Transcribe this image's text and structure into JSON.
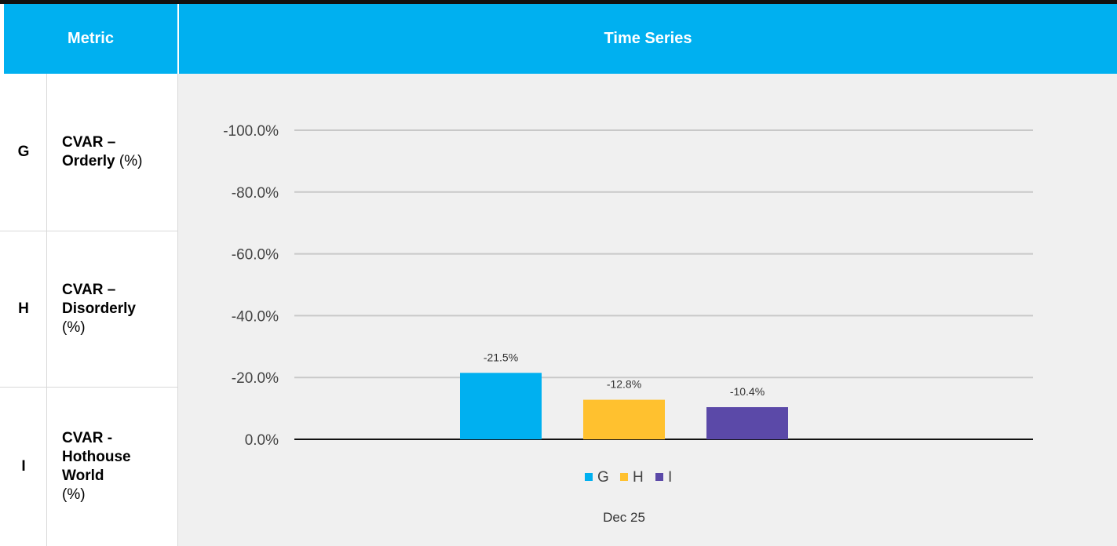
{
  "table": {
    "header_metric": "Metric",
    "header_series": "Time Series",
    "rows": [
      {
        "code": "G",
        "name_bold": "CVAR – Orderly",
        "name_unit": "(%)"
      },
      {
        "code": "H",
        "name_bold": "CVAR – Disorderly",
        "name_unit": "(%)"
      },
      {
        "code": "I",
        "name_bold": "CVAR - Hothouse World",
        "name_unit": "(%)"
      }
    ]
  },
  "chart_data": {
    "type": "bar",
    "categories": [
      "Dec 25"
    ],
    "series": [
      {
        "name": "G",
        "values": [
          -21.5
        ],
        "color": "#00b0f0",
        "label": "-21.5%"
      },
      {
        "name": "H",
        "values": [
          -12.8
        ],
        "color": "#ffc12f",
        "label": "-12.8%"
      },
      {
        "name": "I",
        "values": [
          -10.4
        ],
        "color": "#5b49a8",
        "label": "-10.4%"
      }
    ],
    "y_ticks": [
      "-100.0%",
      "-80.0%",
      "-60.0%",
      "-40.0%",
      "-20.0%",
      "0.0%"
    ],
    "y_tick_values": [
      -100,
      -80,
      -60,
      -40,
      -20,
      0
    ],
    "ylim": [
      0,
      -100
    ],
    "xlabel": "",
    "ylabel": "",
    "grid": true,
    "legend_placement": "bottom-center"
  }
}
